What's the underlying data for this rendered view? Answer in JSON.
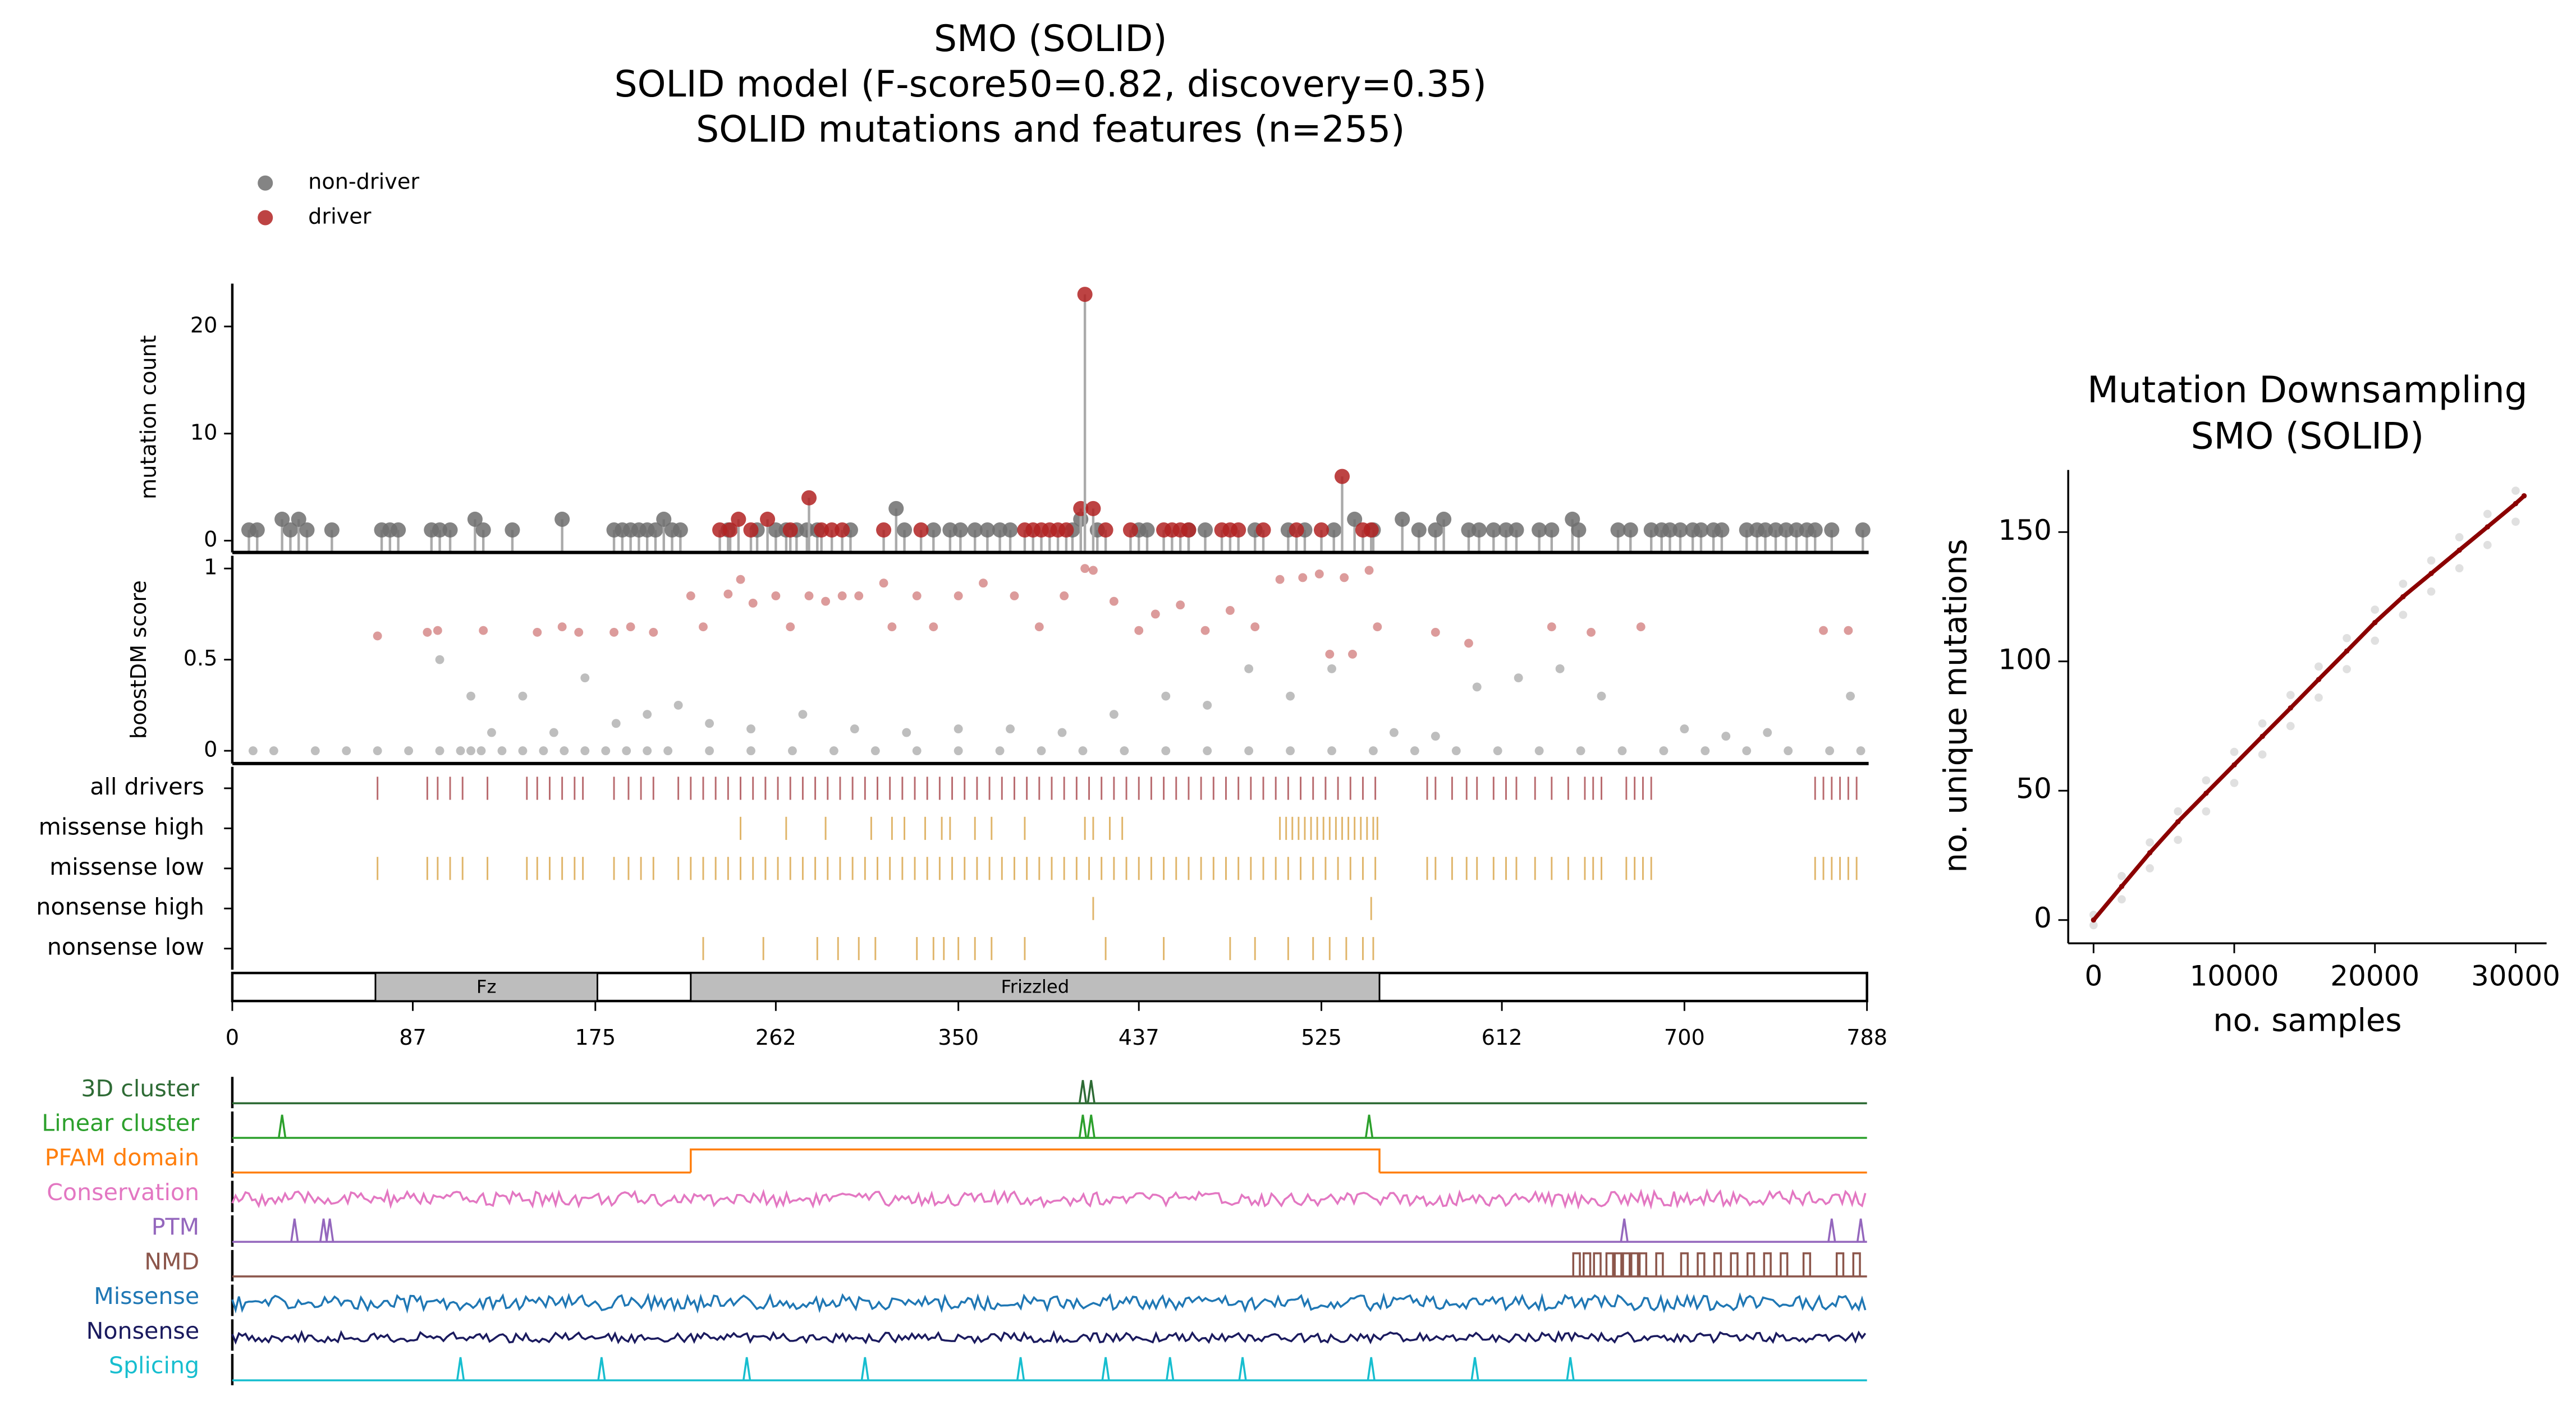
{
  "chart_data": [
    {
      "type": "lollipop",
      "title": [
        "SMO (SOLID)",
        "SOLID model (F-score50=0.82, discovery=0.35)",
        "SOLID mutations and features (n=255)"
      ],
      "ylabel": "mutation count",
      "xlim": [
        0,
        788
      ],
      "ylim": [
        -1.1,
        24
      ],
      "yticks": [
        0,
        10,
        20
      ],
      "series": [
        {
          "name": "non-driver",
          "color": "#6e6e6e",
          "x": [
            8,
            12,
            24,
            28,
            32,
            36,
            48,
            72,
            76,
            80,
            96,
            100,
            105,
            117,
            121,
            135,
            159,
            184,
            188,
            192,
            196,
            200,
            204,
            208,
            212,
            216,
            239,
            253,
            262,
            267,
            272,
            277,
            282,
            298,
            320,
            324,
            338,
            346,
            351,
            358,
            364,
            370,
            375,
            405,
            409,
            417,
            437,
            441,
            461,
            469,
            493,
            509,
            517,
            531,
            541,
            550,
            564,
            572,
            580,
            584,
            596,
            601,
            608,
            614,
            619,
            630,
            636,
            646,
            649,
            668,
            674,
            684,
            689,
            693,
            698,
            704,
            708,
            714,
            718,
            730,
            735,
            739,
            744,
            749,
            754,
            759,
            763,
            771,
            786
          ],
          "values": [
            1,
            1,
            2,
            1,
            2,
            1,
            1,
            1,
            1,
            1,
            1,
            1,
            1,
            2,
            1,
            1,
            2,
            1,
            1,
            1,
            1,
            1,
            1,
            2,
            1,
            1,
            1,
            1,
            1,
            1,
            1,
            1,
            1,
            1,
            3,
            1,
            1,
            1,
            1,
            1,
            1,
            1,
            1,
            1,
            2,
            1,
            1,
            1,
            1,
            1,
            1,
            1,
            1,
            1,
            2,
            1,
            2,
            1,
            1,
            2,
            1,
            1,
            1,
            1,
            1,
            1,
            1,
            2,
            1,
            1,
            1,
            1,
            1,
            1,
            1,
            1,
            1,
            1,
            1,
            1,
            1,
            1,
            1,
            1,
            1,
            1,
            1,
            1,
            1
          ]
        },
        {
          "name": "driver",
          "color": "#b22222",
          "x": [
            235,
            240,
            244,
            250,
            258,
            269,
            278,
            284,
            289,
            294,
            314,
            332,
            382,
            386,
            390,
            394,
            398,
            402,
            409,
            411,
            415,
            421,
            433,
            449,
            453,
            457,
            461,
            477,
            481,
            485,
            497,
            513,
            525,
            535,
            545,
            549
          ],
          "values": [
            1,
            1,
            2,
            1,
            2,
            1,
            4,
            1,
            1,
            1,
            1,
            1,
            1,
            1,
            1,
            1,
            1,
            1,
            3,
            23,
            3,
            1,
            1,
            1,
            1,
            1,
            1,
            1,
            1,
            1,
            1,
            1,
            1,
            6,
            1,
            1
          ]
        }
      ]
    },
    {
      "type": "scatter",
      "ylabel": "boostDM score",
      "xlim": [
        0,
        788
      ],
      "ylim": [
        -0.07,
        1.07
      ],
      "yticks": [
        0,
        0.5,
        1
      ],
      "series": [
        {
          "color": "#6e6e6e",
          "x": [
            10,
            20,
            40,
            55,
            70,
            85,
            100,
            110,
            115,
            120,
            130,
            140,
            150,
            160,
            170,
            180,
            190,
            200,
            210,
            230,
            250,
            270,
            290,
            310,
            330,
            350,
            370,
            390,
            410,
            430,
            450,
            470,
            490,
            510,
            530,
            550,
            570,
            590,
            610,
            630,
            650,
            670,
            690,
            710,
            730,
            750,
            770,
            785,
            100,
            115,
            125,
            140,
            155,
            170,
            185,
            200,
            215,
            230,
            250,
            275,
            300,
            325,
            350,
            375,
            400,
            425,
            450,
            470,
            490,
            510,
            530,
            560,
            580,
            600,
            620,
            640,
            660,
            700,
            720,
            740,
            780
          ],
          "values": [
            0,
            0,
            0,
            0,
            0,
            0,
            0,
            0,
            0,
            0,
            0,
            0,
            0,
            0,
            0,
            0,
            0,
            0,
            0,
            0,
            0,
            0,
            0,
            0,
            0,
            0,
            0,
            0,
            0,
            0,
            0,
            0,
            0,
            0,
            0,
            0,
            0,
            0,
            0,
            0,
            0,
            0,
            0,
            0,
            0,
            0,
            0,
            0,
            0.5,
            0.3,
            0.1,
            0.3,
            0.1,
            0.4,
            0.15,
            0.2,
            0.25,
            0.15,
            0.12,
            0.2,
            0.12,
            0.1,
            0.12,
            0.12,
            0.1,
            0.2,
            0.3,
            0.25,
            0.45,
            0.3,
            0.45,
            0.1,
            0.08,
            0.35,
            0.4,
            0.45,
            0.3,
            0.12,
            0.08,
            0.1,
            0.3
          ]
        },
        {
          "color": "#b22222",
          "x": [
            70,
            94,
            99,
            121,
            147,
            159,
            167,
            184,
            192,
            203,
            221,
            227,
            239,
            245,
            251,
            262,
            269,
            278,
            286,
            294,
            302,
            314,
            318,
            330,
            338,
            350,
            362,
            377,
            389,
            401,
            411,
            415,
            425,
            437,
            445,
            457,
            469,
            481,
            493,
            505,
            516,
            524,
            536,
            548,
            529,
            540,
            552,
            580,
            596,
            636,
            655,
            679,
            767,
            779
          ],
          "values": [
            0.63,
            0.65,
            0.66,
            0.66,
            0.65,
            0.68,
            0.65,
            0.65,
            0.68,
            0.65,
            0.85,
            0.68,
            0.86,
            0.94,
            0.81,
            0.85,
            0.68,
            0.85,
            0.82,
            0.85,
            0.85,
            0.92,
            0.68,
            0.85,
            0.68,
            0.85,
            0.92,
            0.85,
            0.68,
            0.85,
            1.0,
            0.99,
            0.82,
            0.66,
            0.75,
            0.8,
            0.66,
            0.77,
            0.68,
            0.94,
            0.95,
            0.97,
            0.95,
            0.99,
            0.53,
            0.53,
            0.68,
            0.65,
            0.59,
            0.68,
            0.65,
            0.68,
            0.66,
            0.66
          ]
        }
      ]
    },
    {
      "type": "rug",
      "xlim": [
        0,
        788
      ],
      "xticks": [
        0,
        87,
        175,
        262,
        350,
        437,
        525,
        612,
        700,
        788
      ],
      "rows": [
        {
          "name": "all drivers",
          "color": "#b86a6e",
          "positions": [
            70,
            94,
            99,
            105,
            111,
            123,
            142,
            147,
            153,
            159,
            165,
            169,
            184,
            191,
            197,
            203,
            215,
            221,
            227,
            233,
            239,
            245,
            251,
            257,
            263,
            269,
            275,
            281,
            287,
            293,
            299,
            305,
            311,
            317,
            323,
            329,
            335,
            341,
            347,
            353,
            359,
            365,
            371,
            377,
            383,
            389,
            395,
            401,
            407,
            413,
            419,
            425,
            431,
            437,
            443,
            449,
            455,
            461,
            467,
            473,
            479,
            485,
            491,
            497,
            503,
            509,
            515,
            521,
            527,
            533,
            539,
            545,
            551,
            576,
            580,
            588,
            595,
            600,
            608,
            614,
            619,
            628,
            636,
            644,
            652,
            656,
            660,
            672,
            676,
            680,
            684,
            763,
            767,
            771,
            775,
            779,
            783
          ]
        },
        {
          "name": "missense high",
          "color": "#e0b56a",
          "positions": [
            245,
            267,
            286,
            308,
            318,
            324,
            334,
            342,
            346,
            358,
            366,
            382,
            411,
            415,
            423,
            429,
            505,
            508,
            511,
            514,
            517,
            520,
            523,
            526,
            529,
            532,
            535,
            538,
            541,
            544,
            547,
            550,
            552
          ]
        },
        {
          "name": "missense low",
          "color": "#e0b56a",
          "positions": [
            70,
            94,
            99,
            105,
            111,
            123,
            142,
            147,
            153,
            159,
            165,
            169,
            184,
            191,
            197,
            203,
            215,
            221,
            227,
            233,
            239,
            245,
            251,
            257,
            263,
            269,
            275,
            281,
            287,
            293,
            299,
            305,
            311,
            317,
            323,
            329,
            335,
            341,
            347,
            353,
            359,
            365,
            371,
            377,
            383,
            389,
            395,
            401,
            407,
            413,
            419,
            425,
            431,
            437,
            443,
            449,
            455,
            461,
            467,
            473,
            479,
            485,
            491,
            497,
            503,
            509,
            515,
            521,
            527,
            533,
            539,
            545,
            551,
            576,
            580,
            588,
            595,
            600,
            608,
            614,
            619,
            628,
            636,
            644,
            652,
            656,
            660,
            672,
            676,
            680,
            684,
            763,
            767,
            771,
            775,
            779,
            783
          ]
        },
        {
          "name": "nonsense high",
          "color": "#e0b56a",
          "positions": [
            415,
            549
          ]
        },
        {
          "name": "nonsense low",
          "color": "#e0b56a",
          "positions": [
            227,
            256,
            282,
            292,
            302,
            310,
            330,
            338,
            343,
            350,
            358,
            366,
            382,
            421,
            449,
            481,
            493,
            509,
            521,
            529,
            537,
            545,
            550
          ]
        }
      ],
      "domains": [
        {
          "name": "Fz",
          "start": 69,
          "end": 176
        },
        {
          "name": "Frizzled",
          "start": 221,
          "end": 553
        }
      ]
    },
    {
      "type": "tracks",
      "xlim": [
        0,
        788
      ],
      "tracks": [
        {
          "name": "3D cluster",
          "color": "#2e6b35",
          "peaks": [
            410,
            414
          ]
        },
        {
          "name": "Linear cluster",
          "color": "#2ca02c",
          "peaks": [
            24,
            410,
            414,
            548
          ]
        },
        {
          "name": "PFAM domain",
          "color": "#ff7f0e",
          "region": [
            221,
            553
          ]
        },
        {
          "name": "Conservation",
          "color": "#e377c2"
        },
        {
          "name": "PTM",
          "color": "#9467bd",
          "peaks": [
            30,
            44,
            47,
            671,
            771,
            785
          ]
        },
        {
          "name": "NMD",
          "color": "#8c564b",
          "pulses": [
            648,
            653,
            658,
            664,
            668,
            672,
            676,
            680,
            688,
            700,
            708,
            716,
            724,
            732,
            740,
            748,
            759,
            775,
            783
          ]
        },
        {
          "name": "Missense",
          "color": "#1f77b4"
        },
        {
          "name": "Nonsense",
          "color": "#1a1a5e"
        },
        {
          "name": "Splicing",
          "color": "#17becf",
          "peaks": [
            110,
            178,
            248,
            305,
            380,
            421,
            452,
            487,
            549,
            599,
            645
          ]
        }
      ]
    },
    {
      "type": "line",
      "title": [
        "Mutation Downsampling",
        "SMO (SOLID)"
      ],
      "xlabel": "no. samples",
      "ylabel": "no. unique mutations",
      "xlim": [
        -1800,
        32200
      ],
      "ylim": [
        -9,
        174
      ],
      "xticks": [
        0,
        10000,
        20000,
        30000
      ],
      "yticks": [
        0,
        50,
        100,
        150
      ],
      "series": [
        {
          "style": "points",
          "color": "#999999",
          "x": [
            0,
            0,
            2000,
            2000,
            4000,
            4000,
            6000,
            6000,
            8000,
            8000,
            10000,
            10000,
            12000,
            12000,
            14000,
            14000,
            16000,
            16000,
            18000,
            18000,
            20000,
            20000,
            22000,
            22000,
            24000,
            24000,
            26000,
            26000,
            28000,
            28000,
            30000,
            30000
          ],
          "values": [
            -2,
            2,
            8,
            17,
            20,
            30,
            31,
            42,
            42,
            54,
            53,
            65,
            64,
            76,
            75,
            87,
            86,
            98,
            97,
            109,
            108,
            120,
            118,
            130,
            127,
            139,
            136,
            148,
            145,
            157,
            154,
            166
          ]
        },
        {
          "style": "line",
          "color": "#8b0000",
          "x": [
            0,
            2000,
            4000,
            6000,
            8000,
            10000,
            12000,
            14000,
            16000,
            18000,
            20000,
            22000,
            24000,
            26000,
            28000,
            30000,
            30600
          ],
          "values": [
            0,
            13,
            26,
            38,
            49,
            60,
            71,
            82,
            93,
            104,
            115,
            125,
            134,
            143,
            152,
            161,
            164
          ]
        }
      ]
    }
  ]
}
